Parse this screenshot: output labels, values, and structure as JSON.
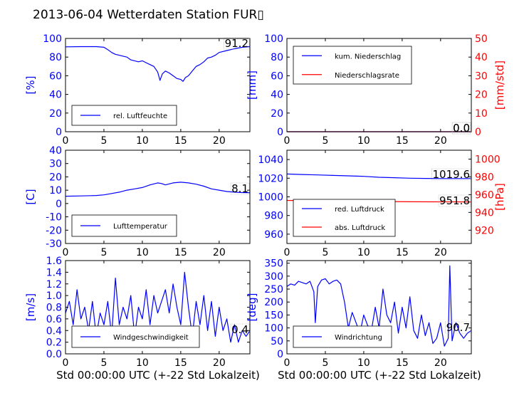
{
  "figure": {
    "title": "2013-06-04 Wetterdaten Station FUR▯",
    "xlabel": "Std 00:00:00 UTC (+-22 Std Lokalzeit)",
    "colors": {
      "left": "#0000ff",
      "right": "#ff0000",
      "axis": "#000000"
    }
  },
  "chart_data": [
    {
      "id": "humidity",
      "type": "line",
      "xlim": [
        0,
        24
      ],
      "xticks": [
        0,
        5,
        10,
        15,
        20
      ],
      "ylim": [
        0,
        100
      ],
      "yticks": [
        0,
        20,
        40,
        60,
        80,
        100
      ],
      "ylabel": "[%]",
      "series": [
        {
          "name": "rel. Luftfeuchte",
          "color": "#0000ff",
          "x": [
            0,
            2,
            4,
            5,
            5.5,
            6,
            6.5,
            7,
            7.5,
            8,
            8.5,
            9,
            9.5,
            10,
            10.5,
            11,
            11.5,
            12,
            12.3,
            12.6,
            13,
            13.5,
            14,
            14.5,
            15,
            15.3,
            15.6,
            16,
            16.5,
            17,
            17.5,
            18,
            18.5,
            19,
            19.5,
            20,
            21,
            22,
            23,
            24
          ],
          "y": [
            91,
            91.2,
            91.2,
            90.5,
            88,
            85,
            83,
            82,
            81,
            80,
            77,
            76,
            75,
            76,
            74,
            72,
            70,
            64,
            55,
            62,
            65,
            63,
            60,
            57,
            56,
            54,
            58,
            60,
            65,
            70,
            72,
            75,
            79,
            80,
            82,
            85,
            87,
            89,
            90.5,
            91.2
          ]
        }
      ],
      "annotation": "91.2"
    },
    {
      "id": "precip",
      "type": "line",
      "xlim": [
        0,
        24
      ],
      "xticks": [
        0,
        5,
        10,
        15,
        20
      ],
      "ylim": [
        0,
        100
      ],
      "yticks": [
        0,
        20,
        40,
        60,
        80,
        100
      ],
      "ylabel": "[mm]",
      "ylim2": [
        0,
        50
      ],
      "yticks2": [
        0,
        10,
        20,
        30,
        40,
        50
      ],
      "ylabel2": "[mm/std]",
      "series": [
        {
          "name": "kum. Niederschlag",
          "color": "#0000ff",
          "x": [
            0,
            24
          ],
          "y": [
            0,
            0
          ]
        },
        {
          "name": "Niederschlagsrate",
          "color": "#ff0000",
          "axis": "right",
          "x": [
            0,
            24
          ],
          "y": [
            0,
            0
          ]
        }
      ],
      "annotation": "0.0",
      "annotation2": "0.0"
    },
    {
      "id": "temperature",
      "type": "line",
      "xlim": [
        0,
        24
      ],
      "xticks": [
        0,
        5,
        10,
        15,
        20
      ],
      "ylim": [
        -30,
        40
      ],
      "yticks": [
        -30,
        -20,
        -10,
        0,
        10,
        20,
        30,
        40
      ],
      "ylabel": "[C]",
      "series": [
        {
          "name": "Lufttemperatur",
          "color": "#0000ff",
          "x": [
            0,
            2,
            4,
            5,
            6,
            7,
            8,
            9,
            10,
            11,
            12,
            12.5,
            13,
            14,
            15,
            16,
            17,
            18,
            19,
            20,
            21,
            22,
            23,
            24
          ],
          "y": [
            5.5,
            5.7,
            6,
            6.5,
            7.5,
            8.5,
            10,
            11,
            12,
            14,
            15.5,
            15,
            14,
            15.5,
            16,
            15.5,
            14.5,
            13,
            11,
            10,
            9,
            8.5,
            8.2,
            8.1
          ]
        }
      ],
      "annotation": "8.1"
    },
    {
      "id": "pressure",
      "type": "line",
      "xlim": [
        0,
        24
      ],
      "xticks": [
        0,
        5,
        10,
        15,
        20
      ],
      "ylim": [
        950,
        1050
      ],
      "yticks": [
        960,
        980,
        1000,
        1020,
        1040
      ],
      "ylim2": [
        905,
        1010
      ],
      "yticks2": [
        920,
        940,
        960,
        980,
        1000
      ],
      "ylabel2": "[hPa]",
      "series": [
        {
          "name": "red. Luftdruck",
          "color": "#0000ff",
          "x": [
            0,
            2,
            4,
            6,
            8,
            10,
            12,
            14,
            16,
            18,
            20,
            22,
            24
          ],
          "y": [
            1024.5,
            1024,
            1023.5,
            1023,
            1022.5,
            1022,
            1021,
            1020.5,
            1020,
            1019.8,
            1019.6,
            1019.6,
            1019.6
          ]
        },
        {
          "name": "abs. Luftdruck",
          "color": "#ff0000",
          "axis": "right",
          "x": [
            0,
            4,
            8,
            12,
            16,
            20,
            24
          ],
          "y": [
            953.5,
            953,
            952.6,
            952.3,
            952,
            951.9,
            951.8
          ]
        }
      ],
      "annotation": "1019.6",
      "annotation2": "951.8"
    },
    {
      "id": "windspeed",
      "type": "line",
      "xlim": [
        0,
        24
      ],
      "xticks": [
        0,
        5,
        10,
        15,
        20
      ],
      "ylim": [
        0,
        1.6
      ],
      "yticks": [
        0.0,
        0.2,
        0.4,
        0.6,
        0.8,
        1.0,
        1.2,
        1.4,
        1.6
      ],
      "ylabel": "[m/s]",
      "series": [
        {
          "name": "Windgeschwindigkeit",
          "color": "#0000ff",
          "x": [
            0,
            0.5,
            1,
            1.5,
            2,
            2.5,
            3,
            3.5,
            4,
            4.5,
            5,
            5.5,
            6,
            6.5,
            7,
            7.5,
            8,
            8.5,
            9,
            9.5,
            10,
            10.5,
            11,
            11.5,
            12,
            12.5,
            13,
            13.5,
            14,
            14.5,
            15,
            15.5,
            16,
            16.5,
            17,
            17.5,
            18,
            18.5,
            19,
            19.5,
            20,
            20.5,
            21,
            21.5,
            22,
            22.5,
            23,
            23.5,
            24
          ],
          "y": [
            0.7,
            0.9,
            0.5,
            1.1,
            0.6,
            0.8,
            0.4,
            0.9,
            0.3,
            0.7,
            0.5,
            0.9,
            0.3,
            1.3,
            0.5,
            0.8,
            0.6,
            1.0,
            0.3,
            0.8,
            0.6,
            1.1,
            0.5,
            1.0,
            0.7,
            0.9,
            1.1,
            0.7,
            1.2,
            0.8,
            0.5,
            1.4,
            0.8,
            0.3,
            0.9,
            0.5,
            1.0,
            0.4,
            0.9,
            0.3,
            0.8,
            0.4,
            0.6,
            0.2,
            0.5,
            0.2,
            0.4,
            0.3,
            0.4
          ]
        }
      ],
      "annotation": "0.4"
    },
    {
      "id": "winddir",
      "type": "line",
      "xlim": [
        0,
        24
      ],
      "xticks": [
        0,
        5,
        10,
        15,
        20
      ],
      "ylim": [
        0,
        360
      ],
      "yticks": [
        0,
        50,
        100,
        150,
        200,
        250,
        300,
        350
      ],
      "ylabel": "[deg]",
      "series": [
        {
          "name": "Windrichtung",
          "color": "#0000ff",
          "x": [
            0,
            0.5,
            1,
            1.5,
            2,
            2.5,
            3,
            3.5,
            3.7,
            4,
            4.5,
            5,
            5.5,
            6,
            6.5,
            7,
            7.5,
            8,
            8.5,
            9,
            9.5,
            10,
            10.5,
            11,
            11.5,
            12,
            12.5,
            13,
            13.5,
            14,
            14.5,
            15,
            15.5,
            16,
            16.5,
            17,
            17.5,
            18,
            18.5,
            19,
            19.5,
            20,
            20.5,
            21,
            21.2,
            21.5,
            22,
            22.5,
            23,
            23.5,
            24
          ],
          "y": [
            260,
            270,
            265,
            280,
            275,
            270,
            280,
            240,
            120,
            260,
            285,
            290,
            270,
            280,
            285,
            270,
            200,
            100,
            160,
            120,
            80,
            150,
            110,
            90,
            180,
            100,
            250,
            150,
            120,
            200,
            80,
            180,
            100,
            220,
            90,
            60,
            150,
            70,
            120,
            40,
            60,
            120,
            30,
            60,
            340,
            50,
            120,
            80,
            60,
            80,
            90
          ]
        }
      ],
      "annotation": "90.7"
    }
  ]
}
